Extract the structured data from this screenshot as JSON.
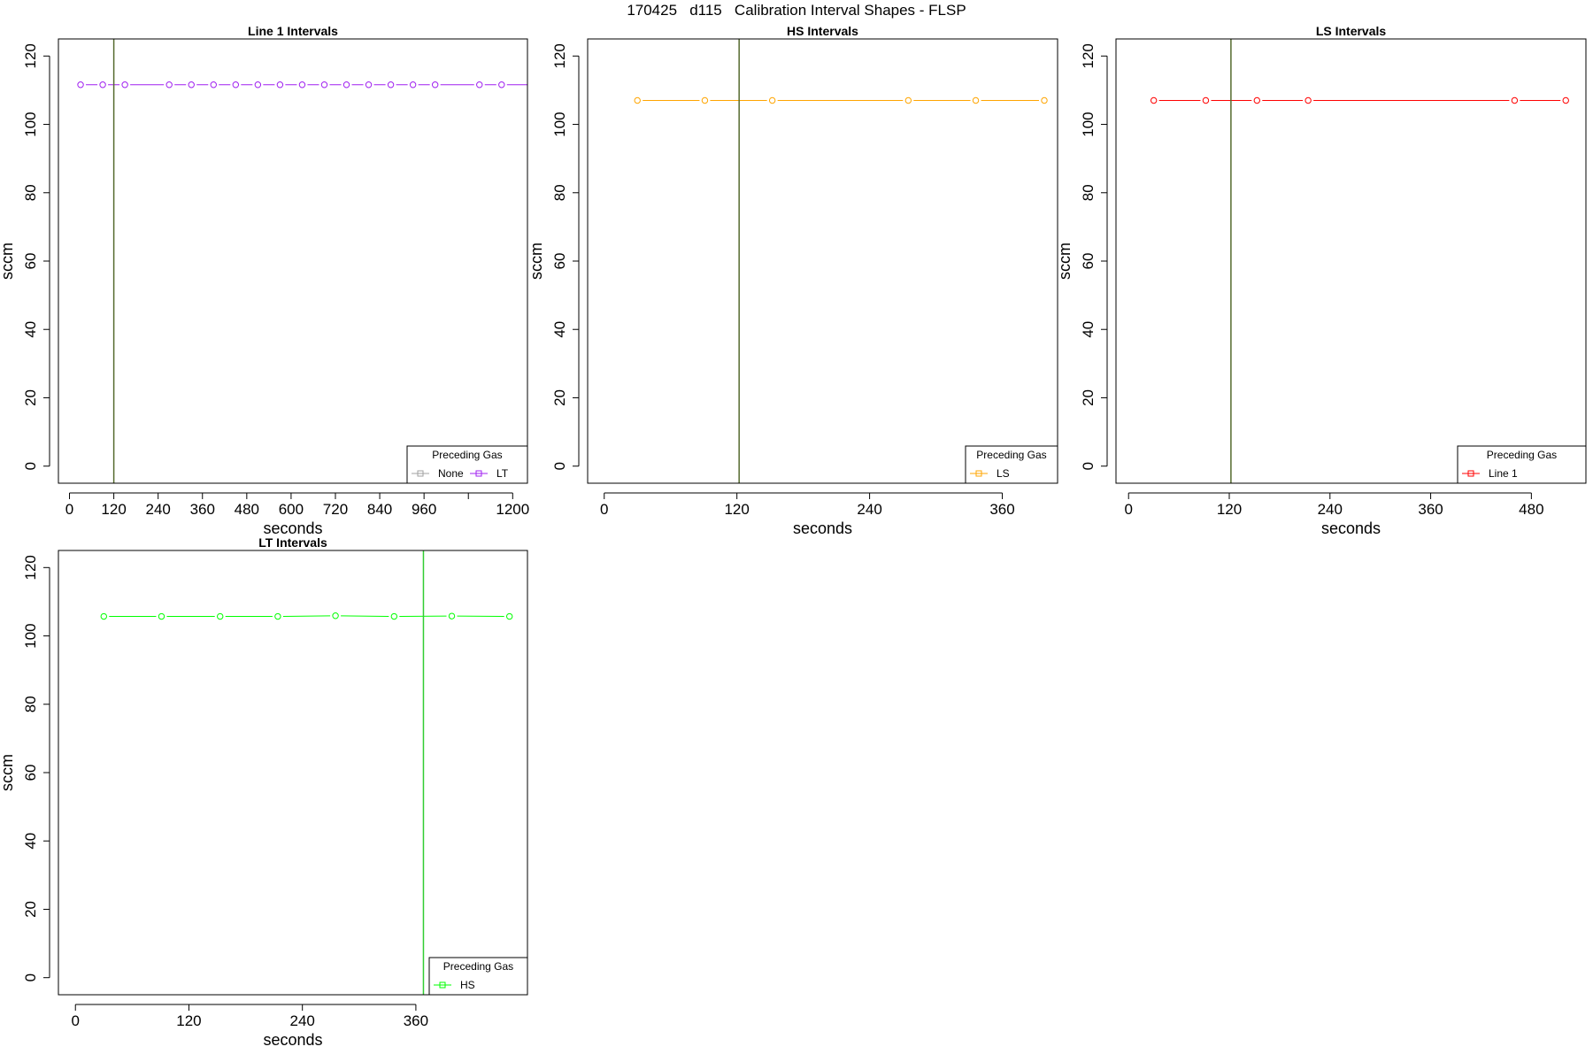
{
  "figure": {
    "title": "170425   d115   Calibration Interval Shapes - FLSP"
  },
  "chart_data": [
    {
      "type": "line",
      "title": "Line 1 Intervals",
      "xlabel": "seconds",
      "ylabel": "sccm",
      "xlim": [
        -30,
        1240
      ],
      "ylim": [
        -5,
        125
      ],
      "xticks": [
        0,
        120,
        240,
        360,
        480,
        600,
        720,
        840,
        960,
        1080,
        1200
      ],
      "xtick_labels": [
        "0",
        "120",
        "240",
        "360",
        "480",
        "600",
        "720",
        "840",
        "960",
        "",
        "1200"
      ],
      "yticks": [
        0,
        20,
        40,
        60,
        80,
        100,
        120
      ],
      "vline": {
        "x": 120,
        "color": "#556b2f"
      },
      "grid": false,
      "legend": {
        "title": "Preceding Gas",
        "position": "bottom-right",
        "entries": [
          {
            "label": "None",
            "color": "#a0a0a0"
          },
          {
            "label": "LT",
            "color": "#a020f0"
          }
        ]
      },
      "series": [
        {
          "name": "LT",
          "color": "#a020f0",
          "x": [
            30,
            90,
            150,
            270,
            330,
            390,
            450,
            510,
            570,
            630,
            690,
            750,
            810,
            870,
            930,
            990,
            1110,
            1170
          ],
          "y": [
            111.6,
            111.6,
            111.6,
            111.6,
            111.6,
            111.6,
            111.6,
            111.6,
            111.6,
            111.6,
            111.6,
            111.6,
            111.6,
            111.6,
            111.6,
            111.6,
            111.6,
            111.6
          ],
          "continues_right": true
        }
      ]
    },
    {
      "type": "line",
      "title": "HS Intervals",
      "xlabel": "seconds",
      "ylabel": "sccm",
      "xlim": [
        -15,
        410
      ],
      "ylim": [
        -5,
        125
      ],
      "xticks": [
        0,
        120,
        240,
        360
      ],
      "xtick_labels": [
        "0",
        "120",
        "240",
        "360"
      ],
      "yticks": [
        0,
        20,
        40,
        60,
        80,
        100,
        120
      ],
      "vline": {
        "x": 122,
        "color": "#556b2f"
      },
      "grid": false,
      "legend": {
        "title": "Preceding Gas",
        "position": "bottom-right",
        "entries": [
          {
            "label": "LS",
            "color": "#ffa500"
          }
        ]
      },
      "series": [
        {
          "name": "LS",
          "color": "#ffa500",
          "x": [
            30,
            91,
            152,
            275,
            336,
            398
          ],
          "y": [
            107,
            107,
            107,
            107,
            107,
            107
          ]
        }
      ]
    },
    {
      "type": "line",
      "title": "LS Intervals",
      "xlabel": "seconds",
      "ylabel": "sccm",
      "xlim": [
        -15,
        545
      ],
      "ylim": [
        -5,
        125
      ],
      "xticks": [
        0,
        120,
        240,
        360,
        480
      ],
      "xtick_labels": [
        "0",
        "120",
        "240",
        "360",
        "480"
      ],
      "yticks": [
        0,
        20,
        40,
        60,
        80,
        100,
        120
      ],
      "vline": {
        "x": 122,
        "color": "#556b2f"
      },
      "grid": false,
      "legend": {
        "title": "Preceding Gas",
        "position": "bottom-right",
        "entries": [
          {
            "label": "Line 1",
            "color": "#ff0000"
          }
        ]
      },
      "series": [
        {
          "name": "Line 1",
          "color": "#ff0000",
          "x": [
            30,
            92,
            153,
            214,
            460,
            521
          ],
          "y": [
            107,
            107,
            107,
            107,
            107,
            107
          ]
        }
      ]
    },
    {
      "type": "line",
      "title": "LT Intervals",
      "xlabel": "seconds",
      "ylabel": "sccm",
      "xlim": [
        -18,
        478
      ],
      "ylim": [
        -5,
        125
      ],
      "xticks": [
        0,
        120,
        240,
        360
      ],
      "xtick_labels": [
        "0",
        "120",
        "240",
        "360"
      ],
      "yticks": [
        0,
        20,
        40,
        60,
        80,
        100,
        120
      ],
      "vline": {
        "x": 368,
        "color": "#32cd32"
      },
      "grid": false,
      "legend": {
        "title": "Preceding Gas",
        "position": "bottom-right",
        "entries": [
          {
            "label": "HS",
            "color": "#00ff00"
          }
        ]
      },
      "series": [
        {
          "name": "HS",
          "color": "#00ff00",
          "x": [
            30,
            91,
            153,
            214,
            275,
            337,
            398,
            459
          ],
          "y": [
            105.7,
            105.7,
            105.7,
            105.7,
            105.9,
            105.7,
            105.8,
            105.7
          ]
        }
      ]
    }
  ]
}
